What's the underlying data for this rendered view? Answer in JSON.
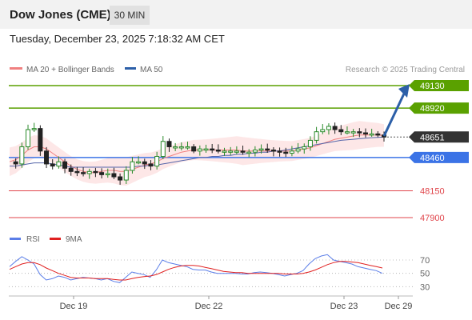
{
  "header": {
    "instrument": "Dow Jones (CME)",
    "timeframe": "30 MIN",
    "timestamp": "Tuesday, December 23, 2025 7:18:32 AM CET"
  },
  "legend": {
    "ma20_label": "MA 20 + Bollinger Bands",
    "ma50_label": "MA 50",
    "credit": "Research © 2025 Trading Central",
    "rsi_label": "RSI",
    "ma9_label": "9MA"
  },
  "colors": {
    "resistance": "#5aa100",
    "pivot": "#3b73e6",
    "support": "#e0454b",
    "last_price": "#333333",
    "arrow": "#2c5fa8",
    "ma20": "#f08080",
    "ma50": "#5566aa",
    "bands": "#fde3e3",
    "candle_up": "#2a8a2a",
    "candle_down": "#222222",
    "rsi": "#5b7ee8",
    "rsi_ma": "#e02020"
  },
  "chart_data": [
    {
      "type": "line",
      "title": "",
      "x_ticks": [
        "Dec 19",
        "Dec 22",
        "Dec 23",
        "Dec 29"
      ],
      "levels": [
        {
          "value": 49130,
          "label": "49130",
          "kind": "resistance"
        },
        {
          "value": 48920,
          "label": "48920",
          "kind": "resistance"
        },
        {
          "value": 48651,
          "label": "48651",
          "kind": "last"
        },
        {
          "value": 48460,
          "label": "48460",
          "kind": "pivot"
        },
        {
          "value": 48150,
          "label": "48150",
          "kind": "support"
        },
        {
          "value": 47900,
          "label": "47900",
          "kind": "support"
        }
      ],
      "forecast_arrow": {
        "from": 48660,
        "to": 49130
      },
      "series": [
        {
          "name": "Price",
          "values": [
            48420,
            48400,
            48560,
            48720,
            48730,
            48520,
            48400,
            48380,
            48420,
            48360,
            48330,
            48320,
            48310,
            48330,
            48320,
            48300,
            48310,
            48280,
            48250,
            48340,
            48420,
            48420,
            48400,
            48380,
            48470,
            48610,
            48560,
            48560,
            48560,
            48560,
            48520,
            48540,
            48540,
            48530,
            48520,
            48520,
            48520,
            48520,
            48510,
            48510,
            48530,
            48540,
            48530,
            48520,
            48510,
            48500,
            48520,
            48540,
            48560,
            48620,
            48700,
            48720,
            48750,
            48720,
            48700,
            48700,
            48700,
            48690,
            48680,
            48680,
            48670,
            48651
          ]
        },
        {
          "name": "MA 20",
          "values": [
            48420,
            48440,
            48480,
            48530,
            48560,
            48560,
            48540,
            48500,
            48460,
            48420,
            48380,
            48350,
            48330,
            48320,
            48320,
            48330,
            48340,
            48340,
            48330,
            48330,
            48350,
            48370,
            48390,
            48400,
            48420,
            48450,
            48470,
            48490,
            48510,
            48520,
            48530,
            48530,
            48530,
            48530,
            48530,
            48530,
            48530,
            48530,
            48520,
            48520,
            48520,
            48520,
            48520,
            48520,
            48520,
            48520,
            48520,
            48530,
            48540,
            48550,
            48570,
            48590,
            48610,
            48630,
            48640,
            48650,
            48660,
            48670,
            48670,
            48670,
            48670,
            48665
          ]
        },
        {
          "name": "MA 50",
          "values": [
            48380,
            48380,
            48390,
            48400,
            48410,
            48410,
            48410,
            48400,
            48390,
            48380,
            48370,
            48370,
            48370,
            48370,
            48370,
            48370,
            48370,
            48370,
            48370,
            48370,
            48370,
            48380,
            48380,
            48390,
            48390,
            48400,
            48410,
            48420,
            48430,
            48440,
            48450,
            48460,
            48460,
            48470,
            48470,
            48480,
            48480,
            48490,
            48490,
            48500,
            48500,
            48510,
            48510,
            48520,
            48520,
            48530,
            48540,
            48550,
            48560,
            48570,
            48580,
            48590,
            48600,
            48610,
            48620,
            48625,
            48630,
            48635,
            48640,
            48645,
            48648,
            48651
          ]
        }
      ]
    },
    {
      "type": "line",
      "title": "",
      "y_ticks": [
        70,
        50,
        30
      ],
      "ylim": [
        22,
        82
      ],
      "series": [
        {
          "name": "RSI",
          "values": [
            60,
            68,
            75,
            70,
            64,
            48,
            40,
            42,
            46,
            44,
            40,
            42,
            44,
            43,
            42,
            40,
            42,
            38,
            36,
            44,
            52,
            50,
            48,
            44,
            55,
            70,
            66,
            64,
            62,
            60,
            56,
            55,
            55,
            52,
            50,
            50,
            50,
            50,
            49,
            49,
            51,
            52,
            51,
            50,
            48,
            46,
            48,
            50,
            54,
            64,
            72,
            76,
            78,
            70,
            68,
            66,
            64,
            60,
            58,
            56,
            54,
            50
          ]
        },
        {
          "name": "9MA",
          "values": [
            56,
            60,
            64,
            66,
            66,
            63,
            58,
            54,
            50,
            47,
            44,
            43,
            43,
            43,
            42,
            42,
            42,
            41,
            40,
            40,
            42,
            44,
            45,
            46,
            48,
            52,
            56,
            59,
            61,
            62,
            62,
            61,
            59,
            57,
            55,
            53,
            52,
            51,
            51,
            50,
            50,
            50,
            50,
            50,
            50,
            49,
            49,
            49,
            50,
            52,
            55,
            59,
            63,
            66,
            68,
            68,
            67,
            66,
            64,
            62,
            60,
            58
          ]
        }
      ]
    }
  ]
}
